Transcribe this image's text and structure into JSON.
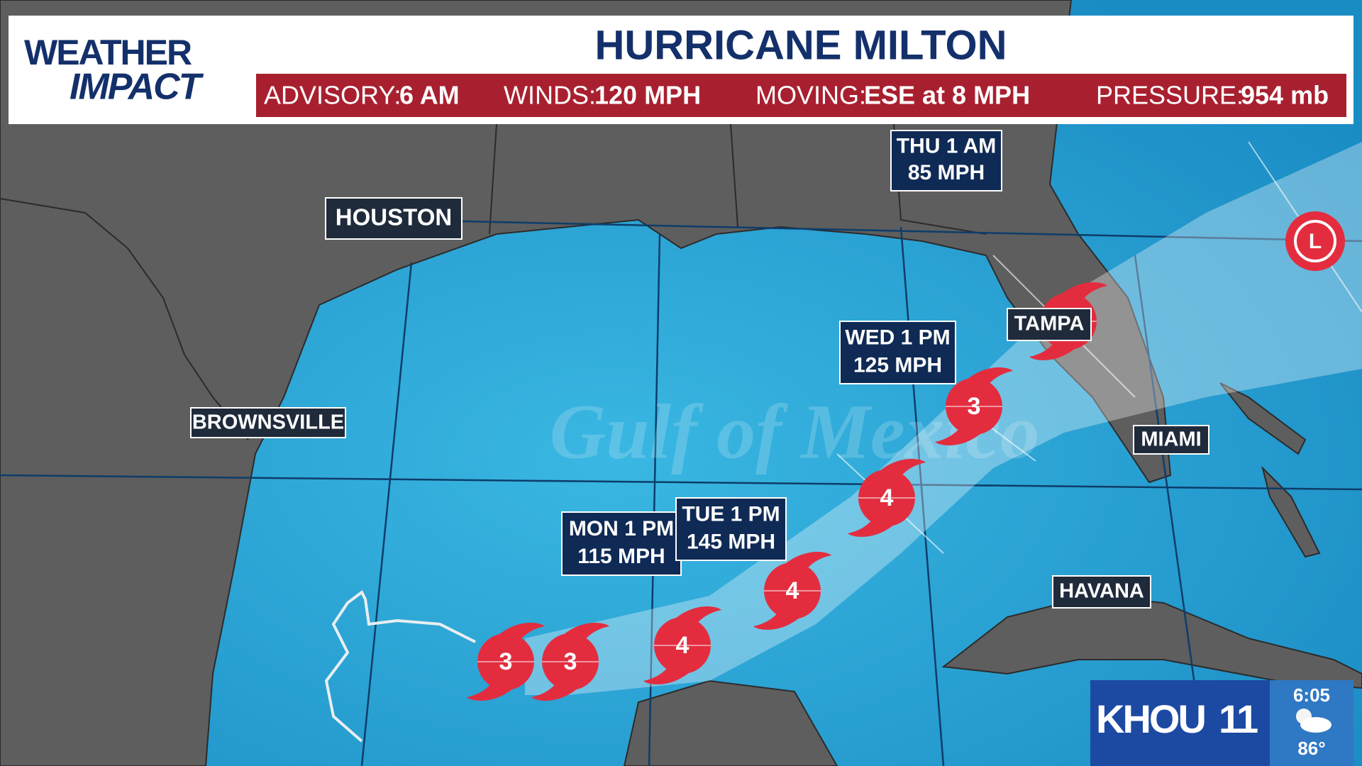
{
  "header": {
    "logo": [
      "WEATHER",
      "IMPACT"
    ],
    "title": "HURRICANE MILTON",
    "stats": [
      {
        "label": "ADVISORY:",
        "value": "6 AM"
      },
      {
        "label": "WINDS:",
        "value": "120 MPH"
      },
      {
        "label": "MOVING:",
        "value": "ESE at 8 MPH"
      },
      {
        "label": "PRESSURE:",
        "value": "954 mb"
      }
    ]
  },
  "watermark": "Gulf of Mexico",
  "cities": [
    "HOUSTON",
    "BROWNSVILLE",
    "TAMPA",
    "MIAMI",
    "HAVANA"
  ],
  "forecast_points": [
    {
      "time": "MON 1 PM",
      "wind": "115 MPH"
    },
    {
      "time": "TUE 1 PM",
      "wind": "145 MPH"
    },
    {
      "time": "WED 1 PM",
      "wind": "125 MPH"
    },
    {
      "time": "THU 1 AM",
      "wind": "85 MPH"
    }
  ],
  "storm_icons": [
    "3",
    "3",
    "4",
    "4",
    "4",
    "3"
  ],
  "low_marker": "L",
  "station": {
    "logo": "KHOU",
    "channel": "11",
    "time": "6:05",
    "temperature": "86°"
  }
}
